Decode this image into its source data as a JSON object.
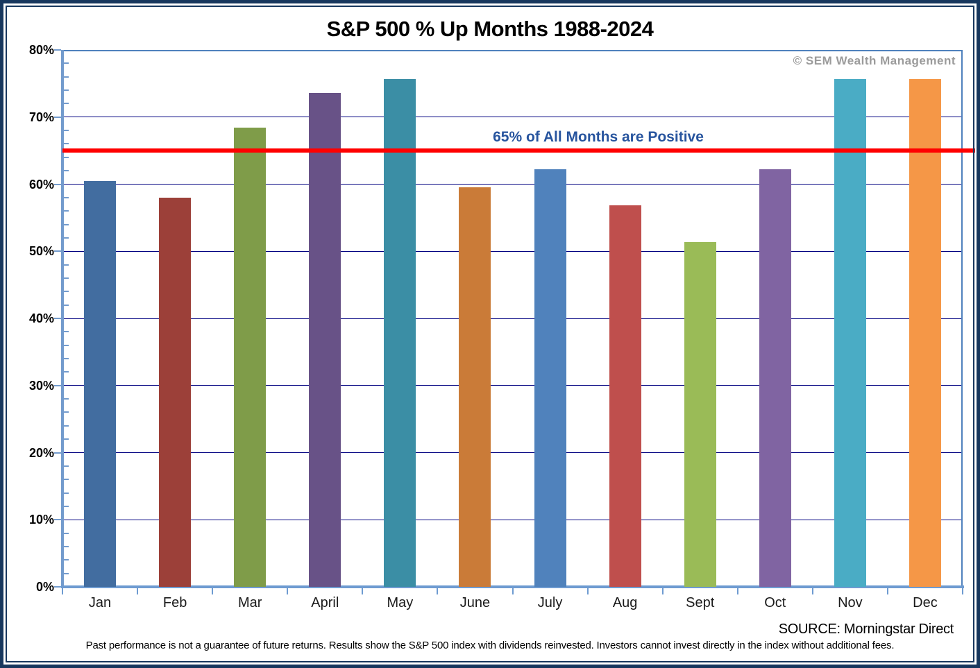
{
  "title": "S&P 500 % Up Months 1988-2024",
  "watermark": "© SEM Wealth Management",
  "source": "SOURCE: Morningstar Direct",
  "disclaimer": "Past performance is not a guarantee of future returns. Results show the S&P 500 index with dividends reinvested. Investors cannot invest directly in the index without additional fees.",
  "chart_data": {
    "type": "bar",
    "title": "S&P 500 % Up Months 1988-2024",
    "categories": [
      "Jan",
      "Feb",
      "Mar",
      "April",
      "May",
      "June",
      "July",
      "Aug",
      "Sept",
      "Oct",
      "Nov",
      "Dec"
    ],
    "values": [
      60.5,
      58.0,
      68.4,
      73.6,
      75.7,
      59.5,
      62.2,
      56.8,
      51.4,
      62.2,
      75.7,
      75.7
    ],
    "bar_colors": [
      "#426DA0",
      "#9C4039",
      "#7F9C49",
      "#685287",
      "#3B8EA5",
      "#CA7B38",
      "#5082BC",
      "#BF4F4D",
      "#9ABB57",
      "#8064A2",
      "#4AACC5",
      "#F59747"
    ],
    "xlabel": "",
    "ylabel": "",
    "ylim": [
      0,
      80
    ],
    "ytick_step": 10,
    "ytick_minor_step": 2,
    "ytick_labels": [
      "0%",
      "10%",
      "20%",
      "30%",
      "40%",
      "50%",
      "60%",
      "70%",
      "80%"
    ],
    "grid": "horizontal-major",
    "gridline_color": "#000080",
    "axis_color": "#6E9BD1",
    "plot_border_color": "#4F81BD",
    "legend": "none",
    "reference_line": {
      "value": 65,
      "color": "#FF0000",
      "label": "65% of All Months are Positive",
      "label_color": "#27549E"
    }
  }
}
